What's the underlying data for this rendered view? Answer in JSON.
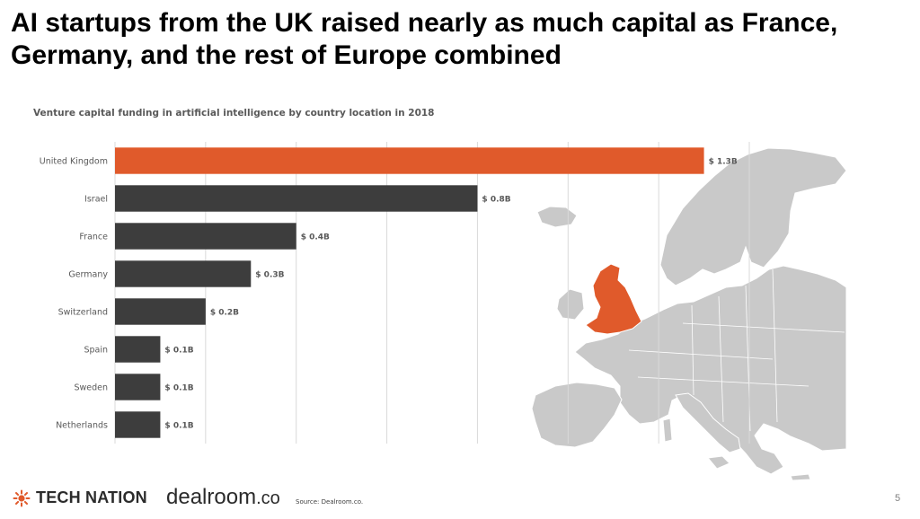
{
  "headline": "AI startups from the UK raised nearly as much capital as France, Germany, and the rest of Europe combined",
  "chart_data": {
    "type": "bar",
    "orientation": "horizontal",
    "title": "Venture capital funding in artificial intelligence by country location in 2018",
    "categories": [
      "United Kingdom",
      "Israel",
      "France",
      "Germany",
      "Switzerland",
      "Spain",
      "Sweden",
      "Netherlands"
    ],
    "values": [
      1.3,
      0.8,
      0.4,
      0.3,
      0.2,
      0.1,
      0.1,
      0.1
    ],
    "data_labels": [
      "$ 1.3B",
      "$ 0.8B",
      "$ 0.4B",
      "$ 0.3B",
      "$ 0.2B",
      "$ 0.1B",
      "$ 0.1B",
      "$ 0.1B"
    ],
    "xlim": [
      0,
      1.4
    ],
    "grid": true,
    "colors": {
      "highlight": "#e05a2b",
      "default": "#3d3d3d"
    },
    "highlight_index": 0
  },
  "map": {
    "highlight_color": "#e05a2b",
    "land_color": "#c9c9c9",
    "border_color": "#ffffff"
  },
  "footer": {
    "tech_nation": "TECH NATION",
    "dealroom": "dealroom",
    "dealroom_suffix": ".co",
    "source": "Source: Dealroom.co.",
    "page_number": "5"
  }
}
